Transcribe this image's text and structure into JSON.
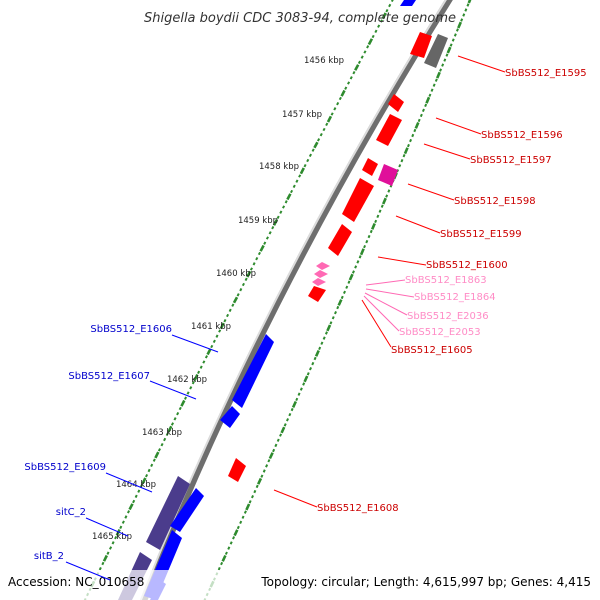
{
  "title": "Shigella boydii CDC 3083-94, complete genome",
  "footer": {
    "accession": "Accession: NC_010658",
    "topology": "Topology: circular; Length: 4,615,997 bp; Genes: 4,415"
  },
  "ticks": [
    "1456 kbp",
    "1457 kbp",
    "1458 kbp",
    "1459 kbp",
    "1460 kbp",
    "1461 kbp",
    "1462 kbp",
    "1463 kbp",
    "1464 kbp",
    "1465 kbp"
  ],
  "genes": {
    "right": [
      "SbBS512_E1595",
      "SbBS512_E1596",
      "SbBS512_E1597",
      "SbBS512_E1598",
      "SbBS512_E1599",
      "SbBS512_E1600",
      "SbBS512_E1863",
      "SbBS512_E1864",
      "SbBS512_E2036",
      "SbBS512_E2053",
      "SbBS512_E1605",
      "SbBS512_E1608"
    ],
    "left": [
      "SbBS512_E1606",
      "SbBS512_E1607",
      "SbBS512_E1609",
      "sitC_2",
      "sitB_2"
    ]
  },
  "colors": {
    "forward": "#ff0000",
    "reverse": "#0000ff",
    "pseudo": "#666666",
    "mobile": "#ff69b4",
    "magenta": "#e0109a",
    "purple": "#4b3c8c",
    "tick": "#2e8b2e",
    "backbone": "#888888"
  }
}
